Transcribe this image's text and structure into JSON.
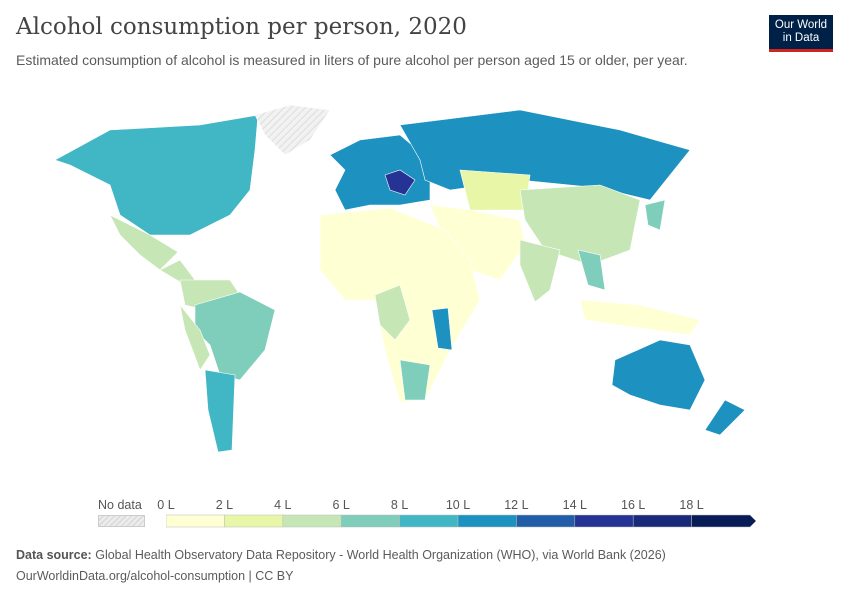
{
  "header": {
    "title": "Alcohol consumption per person, 2020",
    "subtitle": "Estimated consumption of alcohol is measured in liters of pure alcohol per person aged 15 or older, per year."
  },
  "logo": {
    "line1": "Our World",
    "line2": "in Data"
  },
  "legend": {
    "no_data_label": "No data",
    "labels": [
      "0 L",
      "2 L",
      "4 L",
      "6 L",
      "8 L",
      "10 L",
      "12 L",
      "14 L",
      "16 L",
      "18 L"
    ],
    "colors": [
      "#ffffd4",
      "#e8f6a8",
      "#c6e7b5",
      "#7fcdbb",
      "#41b6c4",
      "#1d91c0",
      "#225ea8",
      "#253494",
      "#1a2a7a",
      "#081d58"
    ],
    "no_data_color": "#e6e6e6"
  },
  "footer": {
    "source_label": "Data source:",
    "source_text": "Global Health Observatory Data Repository - World Health Organization (WHO), via World Bank (2026)",
    "url_line": "OurWorldinData.org/alcohol-consumption | CC BY"
  }
}
